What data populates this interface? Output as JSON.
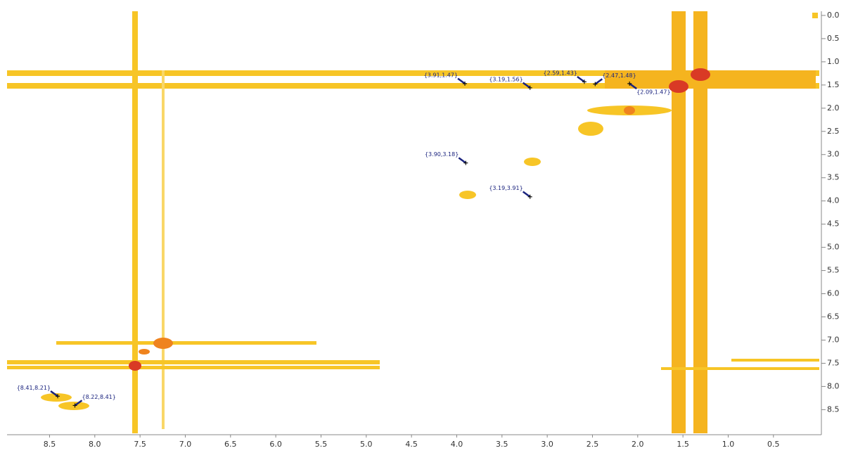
{
  "chart_data": {
    "type": "scatter",
    "x": [
      3.91,
      3.19,
      2.59,
      2.47,
      2.09,
      3.9,
      3.19,
      8.41,
      8.22
    ],
    "values": [
      1.47,
      1.56,
      1.43,
      1.48,
      1.47,
      3.18,
      3.91,
      8.21,
      8.41
    ],
    "value_labels": [
      "{3.91,1.47}",
      "{3.19,1.56}",
      "{2.59,1.43}",
      "{2.47,1.48}",
      "{2.09,1.47}",
      "{3.90,3.18}",
      "{3.19,3.91}",
      "{8.41,8.21}",
      "{8.22,8.41}"
    ],
    "color": "#1a237e",
    "xlim": [
      8.97,
      -0.03
    ],
    "ylim": [
      -0.09,
      9.01
    ],
    "xticks": [
      8.5,
      {
        "value": 8,
        "label": "8.0"
      },
      7.5,
      {
        "value": 7,
        "label": "7.0"
      },
      6.5,
      {
        "value": 6,
        "label": "6.0"
      },
      5.5,
      {
        "value": 5,
        "label": "5.0"
      },
      4.5,
      {
        "value": 4,
        "label": "4.0"
      },
      3.5,
      {
        "value": 3,
        "label": "3.0"
      },
      2.5,
      {
        "value": 2,
        "label": "2.0"
      },
      1.5,
      {
        "value": 1,
        "label": "1.0"
      },
      0.5
    ],
    "yticks": [
      {
        "value": 0,
        "label": "0.0"
      },
      0.5,
      {
        "value": 1,
        "label": "1.0"
      },
      1.5,
      {
        "value": 2,
        "label": "2.0"
      },
      2.5,
      {
        "value": 3,
        "label": "3.0"
      },
      3.5,
      {
        "value": 4,
        "label": "4.0"
      },
      4.5,
      {
        "value": 5,
        "label": "5.0"
      },
      5.5,
      {
        "value": 6,
        "label": "6.0"
      },
      6.5,
      {
        "value": 7,
        "label": "7.0"
      },
      7.5,
      {
        "value": 8,
        "label": "8.0"
      },
      8.5
    ]
  }
}
